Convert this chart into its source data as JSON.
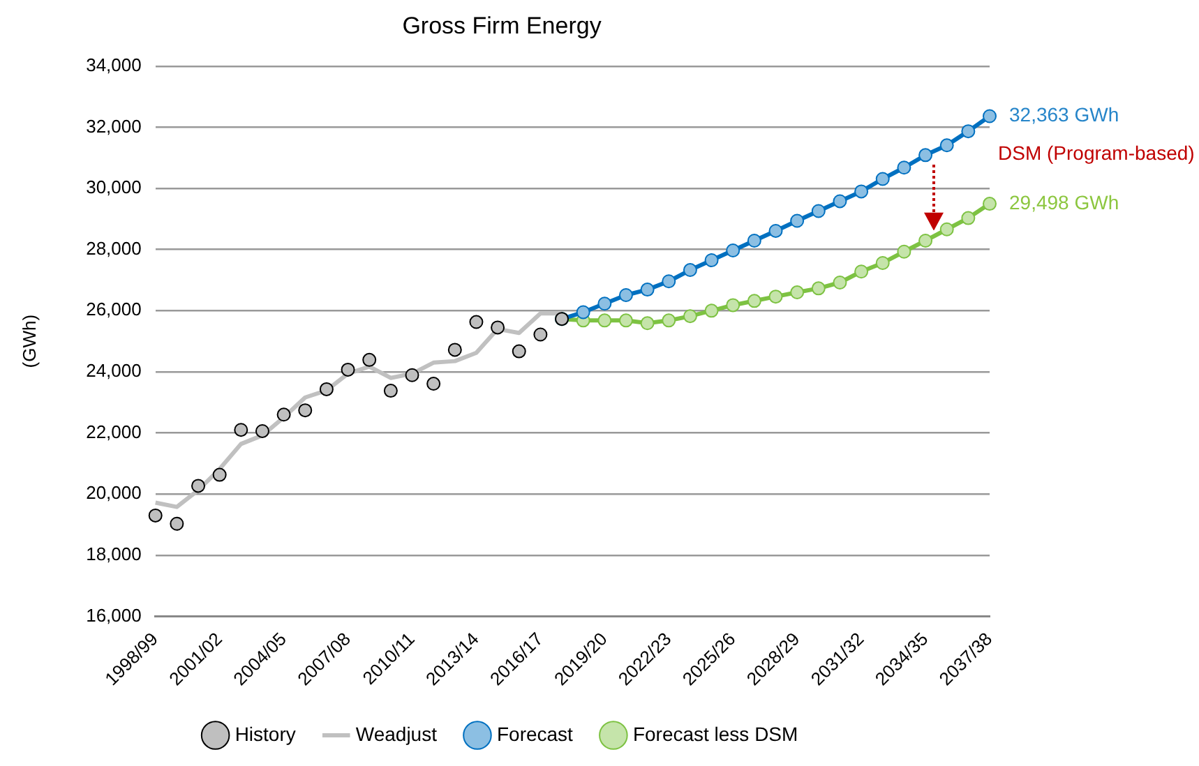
{
  "chart_data": {
    "type": "line",
    "title": "Gross Firm Energy",
    "ylabel": "(GWh)",
    "categories": [
      "1998/99",
      null,
      null,
      "2001/02",
      null,
      null,
      "2004/05",
      null,
      null,
      "2007/08",
      null,
      null,
      "2010/11",
      null,
      null,
      "2013/14",
      null,
      null,
      "2016/17",
      null,
      null,
      "2019/20",
      null,
      null,
      "2022/23",
      null,
      null,
      "2025/26",
      null,
      null,
      "2028/29",
      null,
      null,
      "2031/32",
      null,
      null,
      "2034/35",
      null,
      null,
      "2037/38"
    ],
    "ylim": [
      16000,
      34000
    ],
    "yticks": [
      {
        "value": 16000,
        "label": "16,000"
      },
      {
        "value": 18000,
        "label": "18,000"
      },
      {
        "value": 20000,
        "label": "20,000"
      },
      {
        "value": 22000,
        "label": "22,000"
      },
      {
        "value": 24000,
        "label": "24,000"
      },
      {
        "value": 26000,
        "label": "26,000"
      },
      {
        "value": 28000,
        "label": "28,000"
      },
      {
        "value": 30000,
        "label": "30,000"
      },
      {
        "value": 32000,
        "label": "32,000"
      },
      {
        "value": 34000,
        "label": "34,000"
      }
    ],
    "grid": "y",
    "legend": "bottom",
    "series": [
      {
        "name": "History",
        "type": "scatter",
        "marker": "circle",
        "color": "#bfbfbf",
        "values": [
          19300,
          19030,
          20270,
          20630,
          22100,
          22060,
          22600,
          22740,
          23430,
          24070,
          24390,
          23380,
          23890,
          23610,
          24720,
          25630,
          25450,
          24670,
          25220,
          25730,
          null,
          null,
          null,
          null,
          null,
          null,
          null,
          null,
          null,
          null,
          null,
          null,
          null,
          null,
          null,
          null,
          null,
          null,
          null,
          null
        ]
      },
      {
        "name": "Weadjust",
        "type": "line",
        "marker": "none",
        "color": "#c0c0c0",
        "values": [
          19720,
          19580,
          20130,
          20820,
          21640,
          21920,
          22510,
          23160,
          23390,
          23940,
          24170,
          23800,
          23940,
          24300,
          24350,
          24620,
          25400,
          25270,
          25910,
          25910,
          null,
          null,
          null,
          null,
          null,
          null,
          null,
          null,
          null,
          null,
          null,
          null,
          null,
          null,
          null,
          null,
          null,
          null,
          null,
          null
        ]
      },
      {
        "name": "Forecast",
        "type": "line",
        "marker": "circle",
        "color": "#0070c0",
        "values": [
          null,
          null,
          null,
          null,
          null,
          null,
          null,
          null,
          null,
          null,
          null,
          null,
          null,
          null,
          null,
          null,
          null,
          null,
          null,
          25730,
          25950,
          26230,
          26510,
          26690,
          26960,
          27330,
          27650,
          27970,
          28290,
          28610,
          28940,
          29260,
          29580,
          29900,
          30310,
          30680,
          31090,
          31410,
          31870,
          32363
        ]
      },
      {
        "name": "Forecast less DSM",
        "type": "line",
        "marker": "circle",
        "color": "#7dc242",
        "values": [
          null,
          null,
          null,
          null,
          null,
          null,
          null,
          null,
          null,
          null,
          null,
          null,
          null,
          null,
          null,
          null,
          null,
          null,
          null,
          25730,
          25680,
          25680,
          25680,
          25590,
          25680,
          25820,
          26000,
          26180,
          26320,
          26460,
          26600,
          26730,
          26920,
          27280,
          27560,
          27930,
          28290,
          28660,
          29030,
          29498
        ]
      }
    ],
    "annotations": [
      {
        "text": "32,363 GWh",
        "x": "2037/38",
        "y": 32363
      },
      {
        "text": "29,498 GWh",
        "x": "2037/38",
        "y": 29498
      },
      "DSM (Program-based)"
    ]
  }
}
